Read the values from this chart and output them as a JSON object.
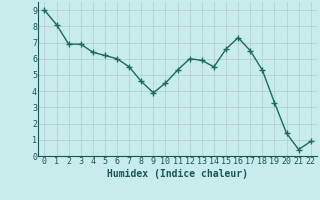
{
  "x": [
    0,
    1,
    2,
    3,
    4,
    5,
    6,
    7,
    8,
    9,
    10,
    11,
    12,
    13,
    14,
    15,
    16,
    17,
    18,
    19,
    20,
    21,
    22
  ],
  "y": [
    9.0,
    8.1,
    6.9,
    6.9,
    6.4,
    6.2,
    6.0,
    5.5,
    4.6,
    3.9,
    4.5,
    5.3,
    6.0,
    5.9,
    5.5,
    6.6,
    7.3,
    6.5,
    5.3,
    3.3,
    1.4,
    0.4,
    0.9
  ],
  "line_color": "#1a6b5a",
  "marker": "+",
  "bg_color": "#c8ecec",
  "grid_color": "#b8d8d8",
  "xlabel": "Humidex (Indice chaleur)",
  "xlim": [
    -0.5,
    22.5
  ],
  "ylim": [
    0,
    9.5
  ],
  "xticks": [
    0,
    1,
    2,
    3,
    4,
    5,
    6,
    7,
    8,
    9,
    10,
    11,
    12,
    13,
    14,
    15,
    16,
    17,
    18,
    19,
    20,
    21,
    22
  ],
  "yticks": [
    0,
    1,
    2,
    3,
    4,
    5,
    6,
    7,
    8,
    9
  ],
  "xlabel_fontsize": 7,
  "tick_fontsize": 6,
  "linewidth": 1.0,
  "markersize": 4,
  "markeredgewidth": 1.0
}
